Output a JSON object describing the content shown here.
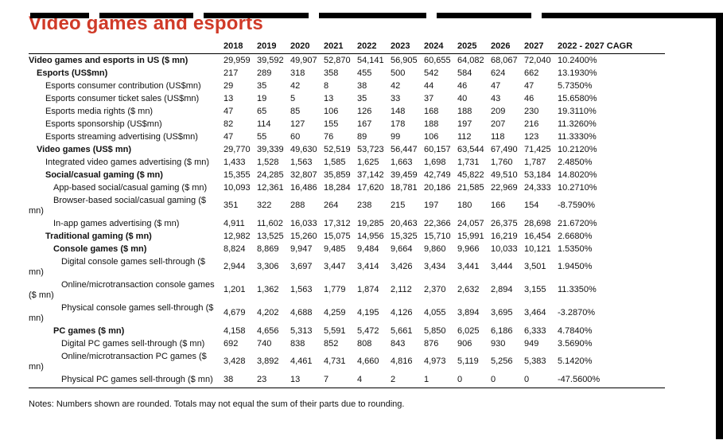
{
  "page": {
    "title": "Video games and esports",
    "notes": "Notes: Numbers shown are rounded. Totals may not equal the sum of their parts due to rounding.",
    "accent_color": "#d03a28"
  },
  "table": {
    "columns": [
      "2018",
      "2019",
      "2020",
      "2021",
      "2022",
      "2023",
      "2024",
      "2025",
      "2026",
      "2027",
      "2022 - 2027 CAGR"
    ],
    "rows": [
      {
        "label": "Video games and esports in US ($ mn)",
        "bold": true,
        "indent": 0,
        "values": [
          "29,959",
          "39,592",
          "49,907",
          "52,870",
          "54,141",
          "56,905",
          "60,655",
          "64,082",
          "68,067",
          "72,040",
          "10.2400%"
        ]
      },
      {
        "label": "Esports (US$mn)",
        "bold": true,
        "indent": 1,
        "values": [
          "217",
          "289",
          "318",
          "358",
          "455",
          "500",
          "542",
          "584",
          "624",
          "662",
          "13.1930%"
        ]
      },
      {
        "label": "Esports consumer contribution (US$mn)",
        "bold": false,
        "indent": 2,
        "values": [
          "29",
          "35",
          "42",
          "8",
          "38",
          "42",
          "44",
          "46",
          "47",
          "47",
          "5.7350%"
        ]
      },
      {
        "label": "Esports consumer ticket sales (US$mn)",
        "bold": false,
        "indent": 2,
        "values": [
          "13",
          "19",
          "5",
          "13",
          "35",
          "33",
          "37",
          "40",
          "43",
          "46",
          "15.6580%"
        ]
      },
      {
        "label": "Esports media rights ($ mn)",
        "bold": false,
        "indent": 2,
        "values": [
          "47",
          "65",
          "85",
          "106",
          "126",
          "148",
          "168",
          "188",
          "209",
          "230",
          "19.3110%"
        ]
      },
      {
        "label": "Esports sponsorship (US$mn)",
        "bold": false,
        "indent": 2,
        "values": [
          "82",
          "114",
          "127",
          "155",
          "167",
          "178",
          "188",
          "197",
          "207",
          "216",
          "11.3260%"
        ]
      },
      {
        "label": "Esports streaming advertising (US$mn)",
        "bold": false,
        "indent": 2,
        "values": [
          "47",
          "55",
          "60",
          "76",
          "89",
          "99",
          "106",
          "112",
          "118",
          "123",
          "11.3330%"
        ]
      },
      {
        "label": "Video games (US$ mn)",
        "bold": true,
        "indent": 1,
        "values": [
          "29,770",
          "39,339",
          "49,630",
          "52,519",
          "53,723",
          "56,447",
          "60,157",
          "63,544",
          "67,490",
          "71,425",
          "10.2120%"
        ]
      },
      {
        "label": "Integrated video games advertising ($ mn)",
        "bold": false,
        "indent": 2,
        "values": [
          "1,433",
          "1,528",
          "1,563",
          "1,585",
          "1,625",
          "1,663",
          "1,698",
          "1,731",
          "1,760",
          "1,787",
          "2.4850%"
        ]
      },
      {
        "label": "Social/casual gaming ($ mn)",
        "bold": true,
        "indent": 2,
        "values": [
          "15,355",
          "24,285",
          "32,807",
          "35,859",
          "37,142",
          "39,459",
          "42,749",
          "45,822",
          "49,510",
          "53,184",
          "14.8020%"
        ]
      },
      {
        "label": "App-based social/casual gaming ($ mn)",
        "bold": false,
        "indent": 3,
        "values": [
          "10,093",
          "12,361",
          "16,486",
          "18,284",
          "17,620",
          "18,781",
          "20,186",
          "21,585",
          "22,969",
          "24,333",
          "10.2710%"
        ]
      },
      {
        "label": "Browser-based social/casual gaming ($ mn)",
        "bold": false,
        "indent": 3,
        "values": [
          "351",
          "322",
          "288",
          "264",
          "238",
          "215",
          "197",
          "180",
          "166",
          "154",
          "-8.7590%"
        ]
      },
      {
        "label": "In-app games advertising ($ mn)",
        "bold": false,
        "indent": 3,
        "values": [
          "4,911",
          "11,602",
          "16,033",
          "17,312",
          "19,285",
          "20,463",
          "22,366",
          "24,057",
          "26,375",
          "28,698",
          "21.6720%"
        ]
      },
      {
        "label": "Traditional gaming ($ mn)",
        "bold": true,
        "indent": 2,
        "values": [
          "12,982",
          "13,525",
          "15,260",
          "15,075",
          "14,956",
          "15,325",
          "15,710",
          "15,991",
          "16,219",
          "16,454",
          "2.6680%"
        ]
      },
      {
        "label": "Console games ($ mn)",
        "bold": true,
        "indent": 3,
        "values": [
          "8,824",
          "8,869",
          "9,947",
          "9,485",
          "9,484",
          "9,664",
          "9,860",
          "9,966",
          "10,033",
          "10,121",
          "1.5350%"
        ]
      },
      {
        "label": "Digital console games sell-through ($ mn)",
        "bold": false,
        "indent": 4,
        "values": [
          "2,944",
          "3,306",
          "3,697",
          "3,447",
          "3,414",
          "3,426",
          "3,434",
          "3,441",
          "3,444",
          "3,501",
          "1.9450%"
        ]
      },
      {
        "label": "Online/microtransaction console games ($ mn)",
        "bold": false,
        "indent": 4,
        "values": [
          "1,201",
          "1,362",
          "1,563",
          "1,779",
          "1,874",
          "2,112",
          "2,370",
          "2,632",
          "2,894",
          "3,155",
          "11.3350%"
        ]
      },
      {
        "label": "Physical console games sell-through ($ mn)",
        "bold": false,
        "indent": 4,
        "values": [
          "4,679",
          "4,202",
          "4,688",
          "4,259",
          "4,195",
          "4,126",
          "4,055",
          "3,894",
          "3,695",
          "3,464",
          "-3.2870%"
        ]
      },
      {
        "label": "PC games ($ mn)",
        "bold": true,
        "indent": 3,
        "values": [
          "4,158",
          "4,656",
          "5,313",
          "5,591",
          "5,472",
          "5,661",
          "5,850",
          "6,025",
          "6,186",
          "6,333",
          "4.7840%"
        ]
      },
      {
        "label": "Digital PC games sell-through ($ mn)",
        "bold": false,
        "indent": 4,
        "values": [
          "692",
          "740",
          "838",
          "852",
          "808",
          "843",
          "876",
          "906",
          "930",
          "949",
          "3.5690%"
        ]
      },
      {
        "label": "Online/microtransaction PC games ($ mn)",
        "bold": false,
        "indent": 4,
        "values": [
          "3,428",
          "3,892",
          "4,461",
          "4,731",
          "4,660",
          "4,816",
          "4,973",
          "5,119",
          "5,256",
          "5,383",
          "5.1420%"
        ]
      },
      {
        "label": "Physical PC games sell-through ($ mn)",
        "bold": false,
        "indent": 4,
        "values": [
          "38",
          "23",
          "13",
          "7",
          "4",
          "2",
          "1",
          "0",
          "0",
          "0",
          "-47.5600%"
        ]
      }
    ]
  }
}
